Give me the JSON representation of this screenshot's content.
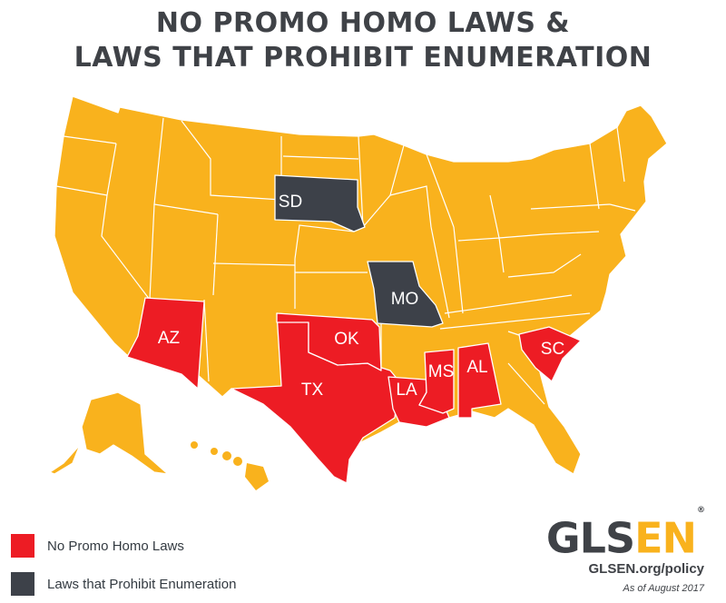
{
  "title": {
    "line1": "NO PROMO HOMO LAWS &",
    "line2": "LAWS THAT PROHIBIT ENUMERATION"
  },
  "colors": {
    "no_promo_homo": "#ed1c24",
    "prohibit_enumeration": "#3d4149",
    "other_states": "#f9b21d"
  },
  "map": {
    "highlighted_states": [
      {
        "abbr": "SD",
        "category": "prohibit_enumeration"
      },
      {
        "abbr": "MO",
        "category": "prohibit_enumeration"
      },
      {
        "abbr": "AZ",
        "category": "no_promo_homo"
      },
      {
        "abbr": "OK",
        "category": "no_promo_homo"
      },
      {
        "abbr": "TX",
        "category": "no_promo_homo"
      },
      {
        "abbr": "LA",
        "category": "no_promo_homo"
      },
      {
        "abbr": "MS",
        "category": "no_promo_homo"
      },
      {
        "abbr": "AL",
        "category": "no_promo_homo"
      },
      {
        "abbr": "SC",
        "category": "no_promo_homo"
      }
    ]
  },
  "legend": {
    "items": [
      {
        "label": "No Promo Homo Laws",
        "color": "#ed1c24"
      },
      {
        "label": "Laws that Prohibit Enumeration",
        "color": "#3d4149"
      }
    ]
  },
  "logo": {
    "part1": "GLS",
    "part2": "EN",
    "mark": "®"
  },
  "footer": {
    "url": "GLSEN.org/policy",
    "as_of": "As of August 2017"
  }
}
